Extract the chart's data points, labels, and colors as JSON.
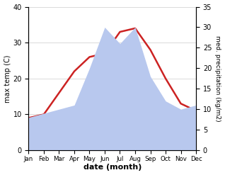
{
  "months": [
    "Jan",
    "Feb",
    "Mar",
    "Apr",
    "May",
    "Jun",
    "Jul",
    "Aug",
    "Sep",
    "Oct",
    "Nov",
    "Dec"
  ],
  "temp": [
    9,
    10,
    16,
    22,
    26,
    27,
    33,
    34,
    28,
    20,
    13,
    11
  ],
  "precip": [
    8,
    9,
    10,
    11,
    20,
    30,
    26,
    30,
    18,
    12,
    10,
    11
  ],
  "temp_color": "#cc2222",
  "precip_color": "#b8c8ee",
  "bg_color": "#ffffff",
  "xlabel": "date (month)",
  "ylabel_left": "max temp (C)",
  "ylabel_right": "med. precipitation (kg/m2)",
  "ylim_left": [
    0,
    40
  ],
  "ylim_right": [
    0,
    35
  ],
  "yticks_left": [
    0,
    10,
    20,
    30,
    40
  ],
  "yticks_right": [
    0,
    5,
    10,
    15,
    20,
    25,
    30,
    35
  ]
}
